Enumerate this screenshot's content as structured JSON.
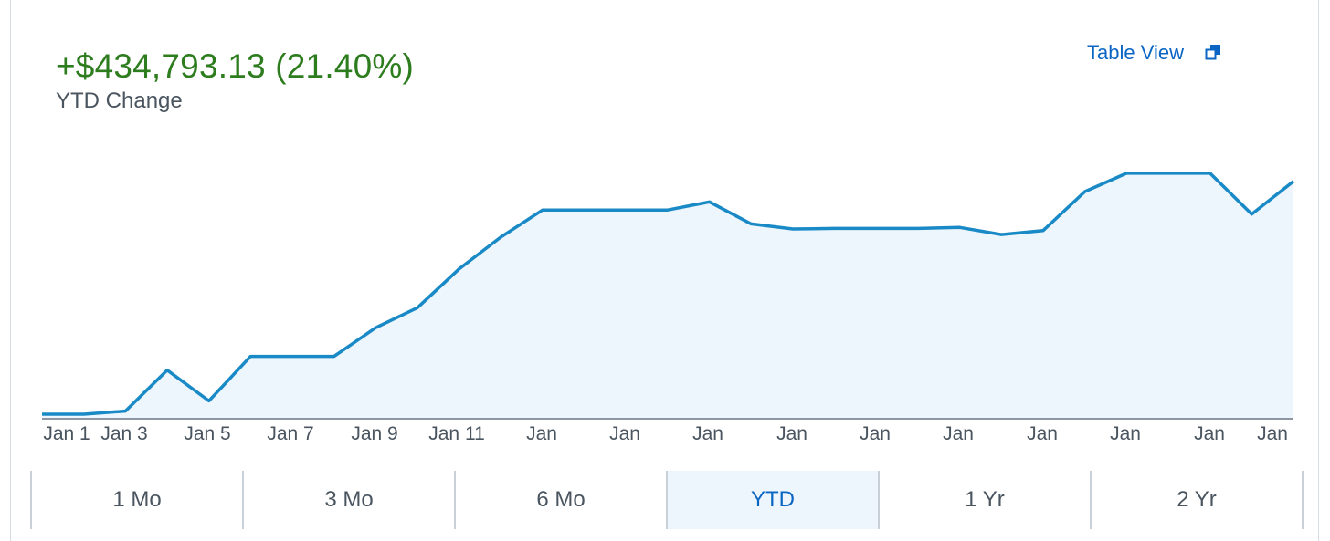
{
  "summary": {
    "change_text": "+$434,793.13 (21.40%)",
    "change_label": "YTD Change",
    "table_view_label": "Table View",
    "change_color": "#2d7d1f"
  },
  "icons": {
    "table_view": "popout-window-icon"
  },
  "colors": {
    "line": "#1a8ac6",
    "area_fill": "#eef6fd",
    "link": "#0b66c3",
    "active_bg": "#eef6fd"
  },
  "ranges": {
    "items": [
      "1 Mo",
      "3 Mo",
      "6 Mo",
      "YTD",
      "1 Yr",
      "2 Yr"
    ],
    "selected": "YTD"
  },
  "chart_data": {
    "type": "area",
    "title": "",
    "xlabel": "",
    "ylabel": "",
    "x_tick_labels": [
      "Jan 1",
      "Jan 3",
      "Jan 5",
      "Jan 7",
      "Jan 9",
      "Jan 11",
      "Jan",
      "Jan",
      "Jan",
      "Jan",
      "Jan",
      "Jan",
      "Jan",
      "Jan",
      "Jan",
      "Jan"
    ],
    "grid": false,
    "legend": "none",
    "series": [
      {
        "values": [
          0.9,
          0.9,
          1.5,
          9.5,
          3.5,
          12.2,
          12.2,
          12.2,
          17.8,
          21.7,
          29.3,
          35.5,
          40.8,
          40.8,
          40.8,
          40.8,
          42.4,
          38.1,
          37.1,
          37.2,
          37.2,
          37.2,
          37.4,
          36.0,
          36.8,
          44.4,
          48.0,
          48.0,
          48.0,
          40.0,
          46.4
        ]
      }
    ],
    "ylim": [
      0,
      56
    ]
  }
}
